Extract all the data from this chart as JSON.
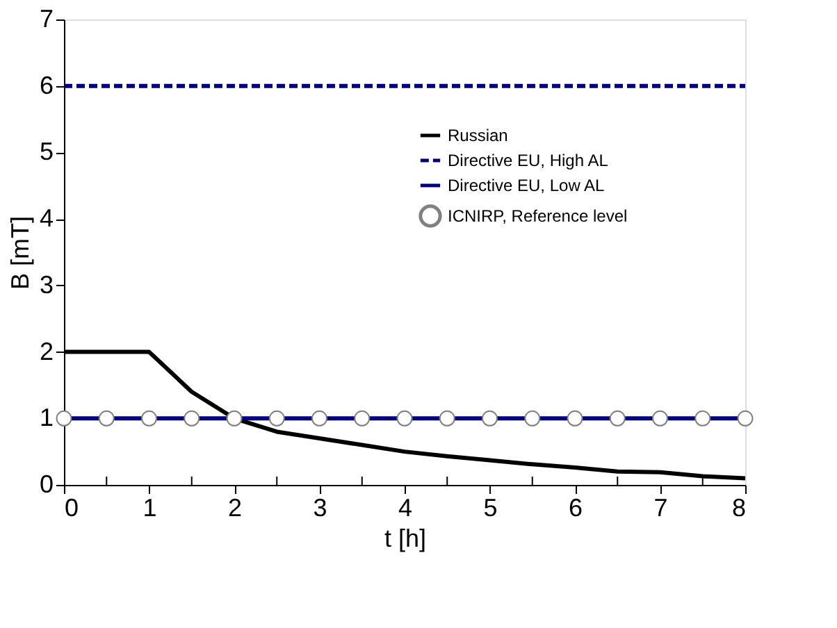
{
  "chart_data": {
    "type": "line",
    "xlabel": "t [h]",
    "ylabel": "B [mT]",
    "xlim": [
      0,
      8
    ],
    "ylim": [
      0,
      7
    ],
    "xticks": [
      0,
      {
        "value": 0.5,
        "label": null
      },
      1,
      {
        "value": 1.5,
        "label": null
      },
      2,
      {
        "value": 2.5,
        "label": null
      },
      3,
      {
        "value": 3.5,
        "label": null
      },
      4,
      {
        "value": 4.5,
        "label": null
      },
      5,
      {
        "value": 5.5,
        "label": null
      },
      6,
      {
        "value": 6.5,
        "label": null
      },
      7,
      {
        "value": 7.5,
        "label": null
      },
      8
    ],
    "yticks": [
      0,
      1,
      2,
      3,
      4,
      5,
      6,
      7
    ],
    "legend": "top right",
    "grid": false,
    "series": [
      {
        "name": "Russian",
        "color": "#000000",
        "line_style": "solid",
        "x": [
          0,
          1,
          1.5,
          2,
          2.5,
          3,
          3.5,
          4,
          4.5,
          5,
          5.5,
          6,
          6.5,
          7,
          7.5,
          8
        ],
        "values": [
          2,
          2,
          1.4,
          1.0,
          0.8,
          0.7,
          0.6,
          0.5,
          0.43,
          0.37,
          0.31,
          0.26,
          0.2,
          0.19,
          0.13,
          0.1
        ]
      },
      {
        "name": "Directive EU, High AL",
        "color": "#000080",
        "line_style": "dashed",
        "x": [
          0,
          8
        ],
        "values": [
          6,
          6
        ]
      },
      {
        "name": "Directive EU, Low AL",
        "color": "#000080",
        "line_style": "solid",
        "x": [
          0,
          8
        ],
        "values": [
          1,
          1
        ]
      },
      {
        "name": "ICNIRP, Reference level",
        "color": "#808080",
        "type": "scatter",
        "marker": "circle",
        "x": [
          0,
          0.5,
          1,
          1.5,
          2,
          2.5,
          3,
          3.5,
          4,
          4.5,
          5,
          5.5,
          6,
          6.5,
          7,
          7.5,
          8
        ],
        "values": [
          1,
          1,
          1,
          1,
          1,
          1,
          1,
          1,
          1,
          1,
          1,
          1,
          1,
          1,
          1,
          1,
          1
        ]
      }
    ]
  }
}
